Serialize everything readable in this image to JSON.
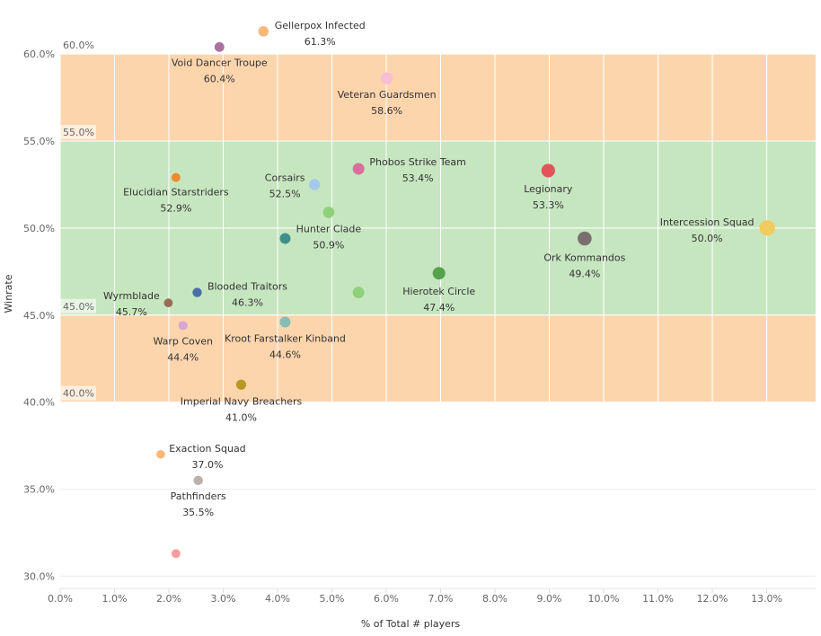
{
  "chart_data": {
    "type": "scatter",
    "xlabel": "% of Total # players",
    "ylabel": "Winrate",
    "xlim": [
      0,
      13.9
    ],
    "ylim": [
      29.3,
      63.1
    ],
    "x_ticks": [
      "0.0%",
      "1.0%",
      "2.0%",
      "3.0%",
      "4.0%",
      "5.0%",
      "6.0%",
      "7.0%",
      "8.0%",
      "9.0%",
      "10.0%",
      "11.0%",
      "12.0%",
      "13.0%"
    ],
    "y_ticks": [
      "30.0%",
      "35.0%",
      "40.0%",
      "45.0%",
      "50.0%",
      "55.0%",
      "60.0%"
    ],
    "grid": true,
    "bands": [
      {
        "from": 55,
        "to": 60,
        "color": "#fdd5ad"
      },
      {
        "from": 45,
        "to": 55,
        "color": "#c6e6bf"
      },
      {
        "from": 40,
        "to": 45,
        "color": "#fdd5ad"
      }
    ],
    "reference_lines": [
      {
        "value": 60,
        "label": "60.0%"
      },
      {
        "value": 55,
        "label": "55.0%"
      },
      {
        "value": 45,
        "label": "45.0%"
      },
      {
        "value": 40,
        "label": "40.0%"
      }
    ],
    "points": [
      {
        "name": "Gellerpox Infected",
        "x": 3.74,
        "y": 61.3,
        "value_label": "61.3%",
        "color": "#fdb877"
      },
      {
        "name": "Void Dancer Troupe",
        "x": 2.93,
        "y": 60.4,
        "value_label": "60.4%",
        "color": "#a9729f"
      },
      {
        "name": "Veteran Guardsmen",
        "x": 6.01,
        "y": 58.6,
        "value_label": "58.6%",
        "color": "#f9bdd5"
      },
      {
        "name": "Elucidian Starstriders",
        "x": 2.13,
        "y": 52.9,
        "value_label": "52.9%",
        "color": "#f08a2f"
      },
      {
        "name": "Corsairs",
        "x": 4.68,
        "y": 52.5,
        "value_label": "52.5%",
        "color": "#a3c9ec"
      },
      {
        "name": "Phobos Strike Team",
        "x": 5.49,
        "y": 53.4,
        "value_label": "53.4%",
        "color": "#d8709a"
      },
      {
        "name": "Hunter Clade",
        "x": 4.94,
        "y": 50.9,
        "value_label": "50.9%",
        "color": "#8fd07a"
      },
      {
        "name": "Legionary",
        "x": 8.98,
        "y": 53.3,
        "value_label": "53.3%",
        "color": "#e2545a"
      },
      {
        "name": "Intercession Squad",
        "x": 13.01,
        "y": 50.0,
        "value_label": "50.0%",
        "color": "#f2cb5e"
      },
      {
        "name": "Ork Kommandos",
        "x": 9.65,
        "y": 49.4,
        "value_label": "49.4%",
        "color": "#7a6f6f"
      },
      {
        "name": "Hierotek Circle",
        "x": 6.97,
        "y": 47.4,
        "value_label": "47.4%",
        "color": "#56a14a"
      },
      {
        "name": "Blooded Traitors",
        "x": 2.52,
        "y": 46.3,
        "value_label": "46.3%",
        "color": "#4a6fa8"
      },
      {
        "name": "Wyrmblade",
        "x": 1.99,
        "y": 45.7,
        "value_label": "45.7%",
        "color": "#9a6c5a"
      },
      {
        "name": "Warp Coven",
        "x": 2.26,
        "y": 44.4,
        "value_label": "44.4%",
        "color": "#d5a6d8"
      },
      {
        "name": "Kroot Farstalker Kinband",
        "x": 4.14,
        "y": 44.6,
        "value_label": "44.6%",
        "color": "#86bcb6"
      },
      {
        "name": "Imperial Navy Breachers",
        "x": 3.33,
        "y": 41.0,
        "value_label": "41.0%",
        "color": "#b99826"
      },
      {
        "name": "Exaction Squad",
        "x": 1.85,
        "y": 37.0,
        "value_label": "37.0%",
        "color": "#fdb877"
      },
      {
        "name": "Pathfinders",
        "x": 2.54,
        "y": 35.5,
        "value_label": "35.5%",
        "color": "#bab0ac"
      },
      {
        "name": "",
        "x": 4.14,
        "y": 49.4,
        "value_label": "",
        "color": "#3f8f8c"
      },
      {
        "name": "",
        "x": 5.49,
        "y": 46.3,
        "value_label": "",
        "color": "#8fd07a"
      },
      {
        "name": "",
        "x": 2.13,
        "y": 31.3,
        "value_label": "",
        "color": "#ff9d9a"
      }
    ]
  }
}
